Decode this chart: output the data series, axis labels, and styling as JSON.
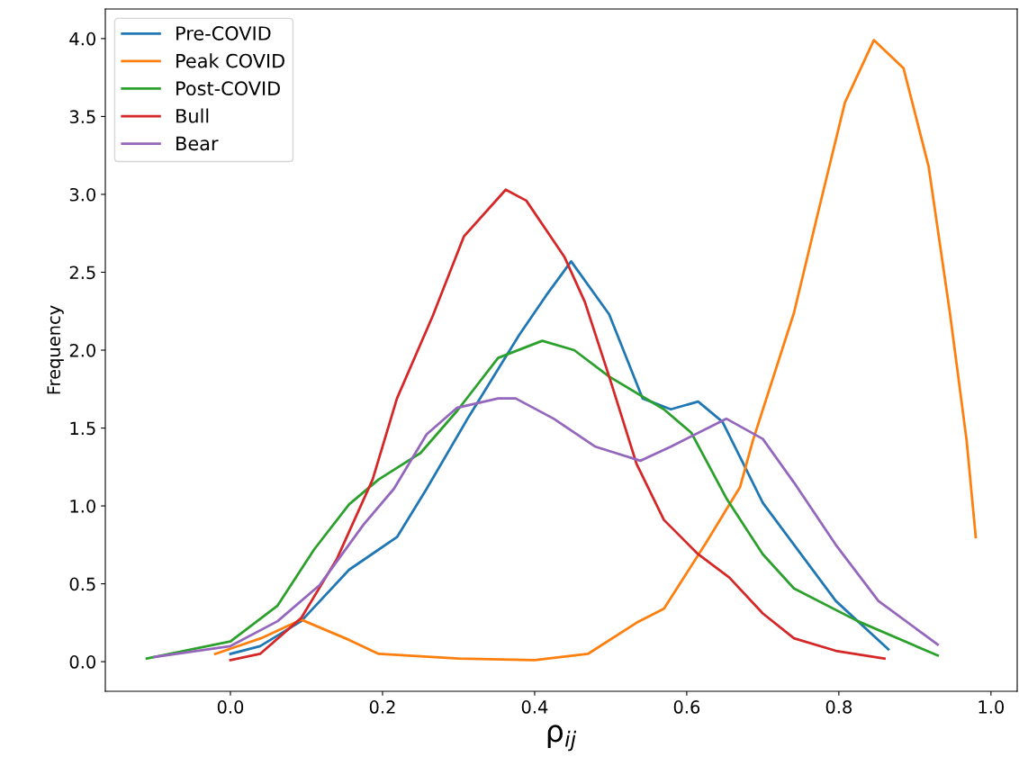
{
  "chart_data": {
    "type": "line",
    "xlabel": "ρ$_{ij}$",
    "ylabel": "Frequency",
    "xlim": [
      -0.1645,
      1.0345
    ],
    "ylim": [
      -0.19,
      4.19
    ],
    "xticks": [
      {
        "value": 0,
        "label": "0.0"
      },
      0.2,
      0.4,
      0.6,
      0.8,
      {
        "value": 1,
        "label": "1.0"
      }
    ],
    "yticks": [
      {
        "value": 0,
        "label": "0.0"
      },
      0.5,
      {
        "value": 1,
        "label": "1.0"
      },
      1.5,
      {
        "value": 2,
        "label": "2.0"
      },
      2.5,
      {
        "value": 3,
        "label": "3.0"
      },
      3.5,
      {
        "value": 4,
        "label": "4.0"
      }
    ],
    "grid": false,
    "legend": "top left",
    "marker": "none",
    "line_style": "solid",
    "series": [
      {
        "name": "Pre-COVID",
        "color": "#1f77b4",
        "x": [
          0.0,
          0.039,
          0.093,
          0.156,
          0.195,
          0.219,
          0.258,
          0.313,
          0.38,
          0.415,
          0.448,
          0.498,
          0.542,
          0.579,
          0.615,
          0.647,
          0.7,
          0.796,
          0.865
        ],
        "values": [
          0.05,
          0.1,
          0.26,
          0.59,
          0.72,
          0.8,
          1.11,
          1.57,
          2.1,
          2.35,
          2.57,
          2.23,
          1.69,
          1.62,
          1.67,
          1.54,
          1.02,
          0.39,
          0.08
        ]
      },
      {
        "name": "Peak COVID",
        "color": "#ff7f0e",
        "x": [
          -0.02,
          0.04,
          0.093,
          0.156,
          0.195,
          0.3,
          0.4,
          0.47,
          0.534,
          0.57,
          0.625,
          0.67,
          0.687,
          0.741,
          0.774,
          0.808,
          0.846,
          0.885,
          0.918,
          0.946,
          0.968,
          0.98
        ],
        "values": [
          0.05,
          0.15,
          0.27,
          0.14,
          0.05,
          0.02,
          0.01,
          0.05,
          0.25,
          0.34,
          0.76,
          1.12,
          1.42,
          2.24,
          2.91,
          3.59,
          3.99,
          3.81,
          3.18,
          2.24,
          1.42,
          0.8
        ]
      },
      {
        "name": "Post-COVID",
        "color": "#2ca02c",
        "x": [
          -0.11,
          0.0,
          0.062,
          0.11,
          0.156,
          0.195,
          0.25,
          0.298,
          0.352,
          0.41,
          0.452,
          0.498,
          0.57,
          0.606,
          0.652,
          0.7,
          0.741,
          0.825,
          0.93
        ],
        "values": [
          0.02,
          0.13,
          0.36,
          0.72,
          1.01,
          1.17,
          1.34,
          1.61,
          1.95,
          2.06,
          2.0,
          1.83,
          1.62,
          1.47,
          1.05,
          0.69,
          0.47,
          0.26,
          0.04
        ]
      },
      {
        "name": "Bull",
        "color": "#d62728",
        "x": [
          0.0,
          0.039,
          0.093,
          0.14,
          0.187,
          0.219,
          0.266,
          0.307,
          0.362,
          0.389,
          0.439,
          0.466,
          0.498,
          0.534,
          0.57,
          0.615,
          0.656,
          0.7,
          0.741,
          0.796,
          0.86
        ],
        "values": [
          0.01,
          0.05,
          0.28,
          0.66,
          1.17,
          1.69,
          2.22,
          2.73,
          3.03,
          2.96,
          2.6,
          2.31,
          1.83,
          1.27,
          0.91,
          0.69,
          0.54,
          0.31,
          0.15,
          0.07,
          0.02
        ]
      },
      {
        "name": "Bear",
        "color": "#9467bd",
        "x": [
          -0.1,
          0.0,
          0.062,
          0.117,
          0.175,
          0.215,
          0.258,
          0.298,
          0.352,
          0.375,
          0.425,
          0.48,
          0.539,
          0.579,
          0.652,
          0.7,
          0.741,
          0.796,
          0.852,
          0.93
        ],
        "values": [
          0.03,
          0.1,
          0.26,
          0.49,
          0.88,
          1.11,
          1.46,
          1.63,
          1.69,
          1.69,
          1.56,
          1.38,
          1.29,
          1.38,
          1.56,
          1.43,
          1.15,
          0.75,
          0.39,
          0.11
        ]
      }
    ]
  }
}
